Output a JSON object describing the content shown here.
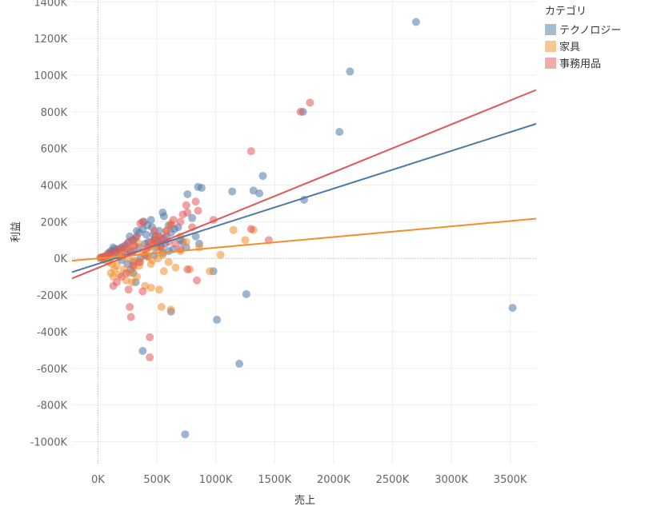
{
  "chart_data": {
    "type": "scatter",
    "xlabel": "売上",
    "ylabel": "利益",
    "xlim": [
      -220000,
      3720000
    ],
    "ylim": [
      -1120000,
      1410000
    ],
    "x_ticks": [
      0,
      500000,
      1000000,
      1500000,
      2000000,
      2500000,
      3000000,
      3500000
    ],
    "x_tick_labels": [
      "0K",
      "500K",
      "1000K",
      "1500K",
      "2000K",
      "2500K",
      "3000K",
      "3500K"
    ],
    "y_ticks": [
      -1000000,
      -800000,
      -600000,
      -400000,
      -200000,
      0,
      200000,
      400000,
      600000,
      800000,
      1000000,
      1200000,
      1400000
    ],
    "y_tick_labels": [
      "-1000K",
      "-800K",
      "-600K",
      "-400K",
      "-200K",
      "0K",
      "200K",
      "400K",
      "600K",
      "800K",
      "1000K",
      "1200K",
      "1400K"
    ],
    "grid": true,
    "legend_position": "top-right",
    "legend_title": "カテゴリ",
    "series": [
      {
        "name": "テクノロジー",
        "color": "#4e79a7",
        "trend": {
          "slope": 0.2055,
          "intercept": -30000
        },
        "points": [
          [
            2700000,
            1290000
          ],
          [
            2140000,
            1020000
          ],
          [
            1740000,
            800000
          ],
          [
            2050000,
            690000
          ],
          [
            1400000,
            450000
          ],
          [
            1320000,
            370000
          ],
          [
            1370000,
            355000
          ],
          [
            1140000,
            365000
          ],
          [
            1750000,
            320000
          ],
          [
            880000,
            385000
          ],
          [
            850000,
            390000
          ],
          [
            760000,
            350000
          ],
          [
            800000,
            220000
          ],
          [
            830000,
            120000
          ],
          [
            860000,
            80000
          ],
          [
            980000,
            -70000
          ],
          [
            620000,
            -290000
          ],
          [
            1010000,
            -335000
          ],
          [
            1260000,
            -195000
          ],
          [
            1200000,
            -575000
          ],
          [
            380000,
            -505000
          ],
          [
            740000,
            -960000
          ],
          [
            3520000,
            -270000
          ],
          [
            550000,
            250000
          ],
          [
            560000,
            230000
          ],
          [
            600000,
            180000
          ],
          [
            520000,
            150000
          ],
          [
            470000,
            130000
          ],
          [
            450000,
            210000
          ],
          [
            420000,
            180000
          ],
          [
            380000,
            160000
          ],
          [
            350000,
            140000
          ],
          [
            320000,
            110000
          ],
          [
            300000,
            100000
          ],
          [
            260000,
            90000
          ],
          [
            230000,
            70000
          ],
          [
            200000,
            60000
          ],
          [
            170000,
            50000
          ],
          [
            150000,
            40000
          ],
          [
            120000,
            30000
          ],
          [
            100000,
            20000
          ],
          [
            80000,
            15000
          ],
          [
            60000,
            10000
          ],
          [
            40000,
            5000
          ],
          [
            20000,
            2000
          ],
          [
            250000,
            50000
          ],
          [
            300000,
            40000
          ],
          [
            350000,
            60000
          ],
          [
            400000,
            80000
          ],
          [
            430000,
            90000
          ],
          [
            480000,
            100000
          ],
          [
            500000,
            60000
          ],
          [
            540000,
            110000
          ],
          [
            580000,
            120000
          ],
          [
            620000,
            140000
          ],
          [
            650000,
            160000
          ],
          [
            680000,
            170000
          ],
          [
            700000,
            100000
          ],
          [
            720000,
            90000
          ],
          [
            750000,
            60000
          ],
          [
            640000,
            50000
          ],
          [
            600000,
            40000
          ],
          [
            550000,
            30000
          ],
          [
            480000,
            20000
          ],
          [
            420000,
            10000
          ],
          [
            360000,
            0
          ],
          [
            300000,
            -20000
          ],
          [
            250000,
            -30000
          ],
          [
            200000,
            -10000
          ],
          [
            180000,
            10000
          ],
          [
            160000,
            30000
          ],
          [
            140000,
            50000
          ],
          [
            130000,
            60000
          ],
          [
            110000,
            40000
          ],
          [
            90000,
            30000
          ],
          [
            300000,
            -80000
          ],
          [
            320000,
            -130000
          ],
          [
            280000,
            -60000
          ],
          [
            270000,
            120000
          ],
          [
            330000,
            150000
          ],
          [
            390000,
            200000
          ],
          [
            410000,
            130000
          ],
          [
            460000,
            170000
          ],
          [
            490000,
            120000
          ],
          [
            510000,
            90000
          ],
          [
            530000,
            70000
          ],
          [
            570000,
            80000
          ]
        ]
      },
      {
        "name": "家具",
        "color": "#f28e2b",
        "trend": {
          "slope": 0.0583,
          "intercept": 0
        },
        "points": [
          [
            1320000,
            155000
          ],
          [
            1150000,
            155000
          ],
          [
            1250000,
            100000
          ],
          [
            1040000,
            20000
          ],
          [
            950000,
            -70000
          ],
          [
            780000,
            -60000
          ],
          [
            700000,
            40000
          ],
          [
            620000,
            -280000
          ],
          [
            540000,
            -265000
          ],
          [
            600000,
            -20000
          ],
          [
            450000,
            -160000
          ],
          [
            400000,
            -150000
          ],
          [
            520000,
            -170000
          ],
          [
            660000,
            -50000
          ],
          [
            560000,
            -70000
          ],
          [
            480000,
            60000
          ],
          [
            500000,
            120000
          ],
          [
            580000,
            150000
          ],
          [
            620000,
            190000
          ],
          [
            750000,
            90000
          ],
          [
            700000,
            120000
          ],
          [
            860000,
            60000
          ],
          [
            450000,
            -30000
          ],
          [
            350000,
            -40000
          ],
          [
            300000,
            -50000
          ],
          [
            270000,
            -80000
          ],
          [
            220000,
            -60000
          ],
          [
            160000,
            -40000
          ],
          [
            130000,
            -100000
          ],
          [
            110000,
            -80000
          ],
          [
            90000,
            -20000
          ],
          [
            60000,
            -10000
          ],
          [
            40000,
            0
          ],
          [
            20000,
            5000
          ],
          [
            150000,
            20000
          ],
          [
            200000,
            30000
          ],
          [
            250000,
            50000
          ],
          [
            300000,
            70000
          ],
          [
            350000,
            80000
          ],
          [
            380000,
            30000
          ],
          [
            420000,
            10000
          ],
          [
            460000,
            -10000
          ],
          [
            510000,
            0
          ],
          [
            550000,
            20000
          ],
          [
            330000,
            -100000
          ],
          [
            290000,
            -130000
          ],
          [
            240000,
            -120000
          ],
          [
            180000,
            -90000
          ],
          [
            140000,
            -60000
          ],
          [
            120000,
            -30000
          ],
          [
            100000,
            0
          ],
          [
            80000,
            10000
          ],
          [
            210000,
            10000
          ],
          [
            260000,
            0
          ],
          [
            310000,
            -10000
          ],
          [
            360000,
            -20000
          ],
          [
            410000,
            40000
          ],
          [
            440000,
            60000
          ],
          [
            470000,
            90000
          ],
          [
            530000,
            50000
          ]
        ]
      },
      {
        "name": "事務用品",
        "color": "#e15759",
        "trend": {
          "slope": 0.2611,
          "intercept": -52000
        },
        "points": [
          [
            1800000,
            850000
          ],
          [
            1720000,
            800000
          ],
          [
            1300000,
            585000
          ],
          [
            1300000,
            160000
          ],
          [
            1450000,
            100000
          ],
          [
            980000,
            210000
          ],
          [
            830000,
            310000
          ],
          [
            850000,
            260000
          ],
          [
            750000,
            290000
          ],
          [
            760000,
            250000
          ],
          [
            720000,
            240000
          ],
          [
            800000,
            170000
          ],
          [
            700000,
            200000
          ],
          [
            640000,
            210000
          ],
          [
            620000,
            180000
          ],
          [
            580000,
            150000
          ],
          [
            840000,
            -120000
          ],
          [
            760000,
            -60000
          ],
          [
            440000,
            -430000
          ],
          [
            440000,
            -540000
          ],
          [
            280000,
            -320000
          ],
          [
            270000,
            -265000
          ],
          [
            380000,
            -180000
          ],
          [
            260000,
            -170000
          ],
          [
            130000,
            -150000
          ],
          [
            160000,
            -130000
          ],
          [
            200000,
            -100000
          ],
          [
            240000,
            -80000
          ],
          [
            300000,
            -40000
          ],
          [
            350000,
            -20000
          ],
          [
            400000,
            20000
          ],
          [
            420000,
            60000
          ],
          [
            380000,
            200000
          ],
          [
            360000,
            190000
          ],
          [
            480000,
            150000
          ],
          [
            520000,
            120000
          ],
          [
            560000,
            110000
          ],
          [
            600000,
            90000
          ],
          [
            660000,
            80000
          ],
          [
            700000,
            50000
          ],
          [
            330000,
            120000
          ],
          [
            290000,
            100000
          ],
          [
            250000,
            80000
          ],
          [
            210000,
            60000
          ],
          [
            180000,
            50000
          ],
          [
            150000,
            40000
          ],
          [
            110000,
            30000
          ],
          [
            80000,
            20000
          ],
          [
            50000,
            10000
          ],
          [
            30000,
            5000
          ],
          [
            230000,
            30000
          ],
          [
            280000,
            40000
          ],
          [
            310000,
            70000
          ],
          [
            450000,
            90000
          ],
          [
            490000,
            100000
          ],
          [
            540000,
            60000
          ]
        ]
      }
    ]
  }
}
